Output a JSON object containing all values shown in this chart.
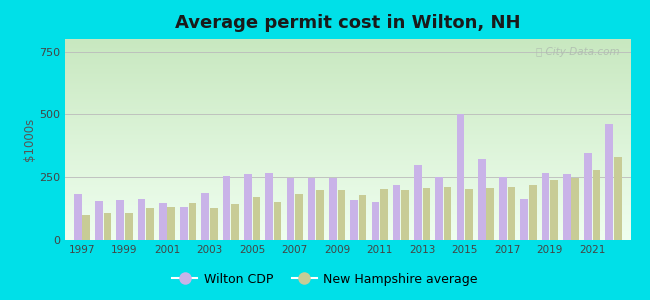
{
  "title": "Average permit cost in Wilton, NH",
  "ylabel": "$1000s",
  "background_outer": "#00e0e8",
  "wilton_color": "#c9b3e8",
  "nh_color": "#c8cc96",
  "years": [
    1997,
    1998,
    1999,
    2000,
    2001,
    2002,
    2003,
    2004,
    2005,
    2006,
    2007,
    2008,
    2009,
    2010,
    2011,
    2012,
    2013,
    2014,
    2015,
    2016,
    2017,
    2018,
    2019,
    2020,
    2021,
    2022
  ],
  "wilton_values": [
    185,
    155,
    160,
    165,
    148,
    132,
    187,
    255,
    262,
    265,
    248,
    248,
    248,
    158,
    152,
    220,
    298,
    250,
    500,
    322,
    250,
    162,
    268,
    262,
    345,
    462
  ],
  "nh_values": [
    100,
    108,
    108,
    128,
    132,
    148,
    128,
    142,
    172,
    152,
    182,
    198,
    198,
    178,
    202,
    198,
    208,
    212,
    202,
    208,
    212,
    218,
    238,
    248,
    278,
    332
  ],
  "yticks": [
    0,
    250,
    500,
    750
  ],
  "ylim": [
    0,
    800
  ],
  "watermark": "City-Data.com",
  "legend_wilton": "Wilton CDP",
  "legend_nh": "New Hampshire average",
  "xlabel_years": [
    1997,
    1999,
    2001,
    2003,
    2005,
    2007,
    2009,
    2011,
    2013,
    2015,
    2017,
    2019,
    2021
  ]
}
